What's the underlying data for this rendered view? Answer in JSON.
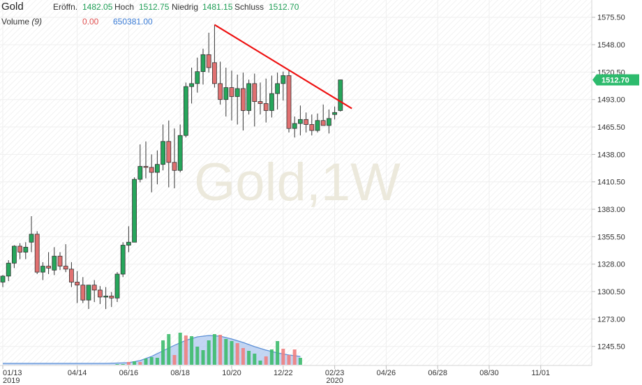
{
  "header": {
    "symbol": "Gold",
    "open_label": "Eröffn.",
    "open_value": "1482.05",
    "high_label": "Hoch",
    "high_value": "1512.75",
    "low_label": "Niedrig",
    "low_value": "1481.15",
    "close_label": "Schluss",
    "close_value": "1512.70",
    "volume_label": "Volume",
    "volume_period": "(9)",
    "volume_change": "0.00",
    "volume_avg": "650381.00"
  },
  "watermark": "Gold,1W",
  "last_price_badge": "1512.70",
  "colors": {
    "up": "#26a65b",
    "down": "#e07070",
    "trend": "#ee1111",
    "vol_area": "#aac4ee",
    "vol_line": "#5b8fd6",
    "badge": "#2dbb6d",
    "grid": "#efefef"
  },
  "chart_data": {
    "type": "candlestick",
    "title": "Gold",
    "timeframe": "1W",
    "ylim": [
      1232,
      1590
    ],
    "y_ticks": [
      "1575.50",
      "1548.00",
      "1520.50",
      "1493.00",
      "1465.50",
      "1438.00",
      "1410.50",
      "1383.00",
      "1355.50",
      "1328.00",
      "1300.50",
      "1273.00",
      "1245.50"
    ],
    "x_ticks": [
      {
        "label": "01/13",
        "sub": "2019",
        "week": 0
      },
      {
        "label": "04/14",
        "sub": "",
        "week": 13
      },
      {
        "label": "06/16",
        "sub": "",
        "week": 22
      },
      {
        "label": "08/18",
        "sub": "",
        "week": 31
      },
      {
        "label": "10/20",
        "sub": "",
        "week": 40
      },
      {
        "label": "12/22",
        "sub": "",
        "week": 49
      },
      {
        "label": "02/23",
        "sub": "2020",
        "week": 58
      },
      {
        "label": "04/26",
        "sub": "",
        "week": 67
      },
      {
        "label": "06/28",
        "sub": "",
        "week": 76
      },
      {
        "label": "08/30",
        "sub": "",
        "week": 85
      },
      {
        "label": "11/01",
        "sub": "",
        "week": 94
      }
    ],
    "ohlc": [
      [
        1310,
        1317,
        1305,
        1316
      ],
      [
        1316,
        1332,
        1311,
        1329
      ],
      [
        1329,
        1347,
        1324,
        1346
      ],
      [
        1346,
        1349,
        1333,
        1340
      ],
      [
        1340,
        1350,
        1333,
        1345
      ],
      [
        1350,
        1376,
        1340,
        1358
      ],
      [
        1358,
        1361,
        1318,
        1320
      ],
      [
        1320,
        1330,
        1312,
        1326
      ],
      [
        1326,
        1340,
        1318,
        1324
      ],
      [
        1322,
        1345,
        1317,
        1336
      ],
      [
        1336,
        1340,
        1322,
        1326
      ],
      [
        1326,
        1348,
        1320,
        1323
      ],
      [
        1323,
        1330,
        1305,
        1310
      ],
      [
        1310,
        1321,
        1289,
        1307
      ],
      [
        1307,
        1315,
        1289,
        1292
      ],
      [
        1292,
        1305,
        1283,
        1307
      ],
      [
        1307,
        1312,
        1290,
        1302
      ],
      [
        1302,
        1306,
        1288,
        1295
      ],
      [
        1295,
        1305,
        1283,
        1296
      ],
      [
        1296,
        1300,
        1285,
        1294
      ],
      [
        1294,
        1320,
        1290,
        1318
      ],
      [
        1318,
        1350,
        1315,
        1347
      ],
      [
        1347,
        1366,
        1340,
        1350
      ],
      [
        1350,
        1415,
        1350,
        1413
      ],
      [
        1413,
        1448,
        1410,
        1426
      ],
      [
        1426,
        1451,
        1414,
        1425
      ],
      [
        1425,
        1438,
        1400,
        1420
      ],
      [
        1420,
        1442,
        1408,
        1428
      ],
      [
        1428,
        1468,
        1422,
        1451
      ],
      [
        1451,
        1472,
        1405,
        1430
      ],
      [
        1430,
        1464,
        1404,
        1422
      ],
      [
        1422,
        1468,
        1420,
        1457
      ],
      [
        1457,
        1510,
        1455,
        1506
      ],
      [
        1506,
        1525,
        1489,
        1509
      ],
      [
        1509,
        1535,
        1500,
        1521
      ],
      [
        1521,
        1544,
        1508,
        1538
      ],
      [
        1538,
        1560,
        1520,
        1525
      ],
      [
        1530,
        1568,
        1505,
        1509
      ],
      [
        1509,
        1531,
        1488,
        1493
      ],
      [
        1493,
        1525,
        1476,
        1505
      ],
      [
        1505,
        1522,
        1472,
        1496
      ],
      [
        1496,
        1518,
        1468,
        1504
      ],
      [
        1504,
        1520,
        1462,
        1482
      ],
      [
        1482,
        1513,
        1478,
        1509
      ],
      [
        1509,
        1519,
        1466,
        1491
      ],
      [
        1491,
        1510,
        1478,
        1489
      ],
      [
        1489,
        1514,
        1470,
        1482
      ],
      [
        1482,
        1517,
        1475,
        1499
      ],
      [
        1499,
        1520,
        1483,
        1509
      ],
      [
        1509,
        1521,
        1492,
        1517
      ],
      [
        1517,
        1522,
        1460,
        1464
      ],
      [
        1464,
        1476,
        1455,
        1469
      ],
      [
        1469,
        1487,
        1457,
        1473
      ],
      [
        1473,
        1480,
        1460,
        1468
      ],
      [
        1468,
        1478,
        1457,
        1462
      ],
      [
        1462,
        1479,
        1460,
        1472
      ],
      [
        1472,
        1488,
        1470,
        1467
      ],
      [
        1467,
        1483,
        1459,
        1474
      ],
      [
        1478,
        1486,
        1473,
        1480
      ],
      [
        1482,
        1513,
        1481,
        1512.7
      ]
    ],
    "volume_bars": [
      {
        "week": 20,
        "value": 1,
        "dir": "up"
      },
      {
        "week": 21,
        "value": 1,
        "dir": "up"
      },
      {
        "week": 22,
        "value": 4,
        "dir": "down"
      },
      {
        "week": 23,
        "value": 5,
        "dir": "up"
      },
      {
        "week": 24,
        "value": 4,
        "dir": "down"
      },
      {
        "week": 25,
        "value": 9,
        "dir": "up"
      },
      {
        "week": 26,
        "value": 11,
        "dir": "up"
      },
      {
        "week": 27,
        "value": 10,
        "dir": "up"
      },
      {
        "week": 28,
        "value": 35,
        "dir": "up"
      },
      {
        "week": 29,
        "value": 44,
        "dir": "up"
      },
      {
        "week": 30,
        "value": 14,
        "dir": "down"
      },
      {
        "week": 31,
        "value": 46,
        "dir": "up"
      },
      {
        "week": 32,
        "value": 42,
        "dir": "down"
      },
      {
        "week": 33,
        "value": 41,
        "dir": "up"
      },
      {
        "week": 34,
        "value": 26,
        "dir": "up"
      },
      {
        "week": 35,
        "value": 21,
        "dir": "up"
      },
      {
        "week": 36,
        "value": 35,
        "dir": "up"
      },
      {
        "week": 37,
        "value": 44,
        "dir": "up"
      },
      {
        "week": 38,
        "value": 43,
        "dir": "down"
      },
      {
        "week": 39,
        "value": 37,
        "dir": "up"
      },
      {
        "week": 40,
        "value": 34,
        "dir": "up"
      },
      {
        "week": 41,
        "value": 31,
        "dir": "down"
      },
      {
        "week": 42,
        "value": 24,
        "dir": "down"
      },
      {
        "week": 43,
        "value": 20,
        "dir": "up"
      },
      {
        "week": 44,
        "value": 16,
        "dir": "up"
      },
      {
        "week": 45,
        "value": 6,
        "dir": "up"
      },
      {
        "week": 46,
        "value": 12,
        "dir": "down"
      },
      {
        "week": 47,
        "value": 22,
        "dir": "up"
      },
      {
        "week": 48,
        "value": 34,
        "dir": "up"
      },
      {
        "week": 49,
        "value": 23,
        "dir": "down"
      },
      {
        "week": 50,
        "value": 14,
        "dir": "down"
      },
      {
        "week": 51,
        "value": 22,
        "dir": "down"
      },
      {
        "week": 52,
        "value": 10,
        "dir": "up"
      }
    ],
    "volume_avg_curve": [
      [
        0,
        2
      ],
      [
        18,
        2
      ],
      [
        22,
        3
      ],
      [
        24,
        6
      ],
      [
        26,
        12
      ],
      [
        28,
        20
      ],
      [
        30,
        28
      ],
      [
        32,
        35
      ],
      [
        34,
        40
      ],
      [
        36,
        42
      ],
      [
        38,
        41
      ],
      [
        40,
        37
      ],
      [
        42,
        32
      ],
      [
        44,
        26
      ],
      [
        46,
        21
      ],
      [
        48,
        17
      ],
      [
        50,
        14
      ],
      [
        52,
        12
      ]
    ],
    "volume_max": 50,
    "trendline": [
      [
        37,
        1568
      ],
      [
        61,
        1484
      ]
    ],
    "grid": true,
    "price_axis": "right"
  }
}
